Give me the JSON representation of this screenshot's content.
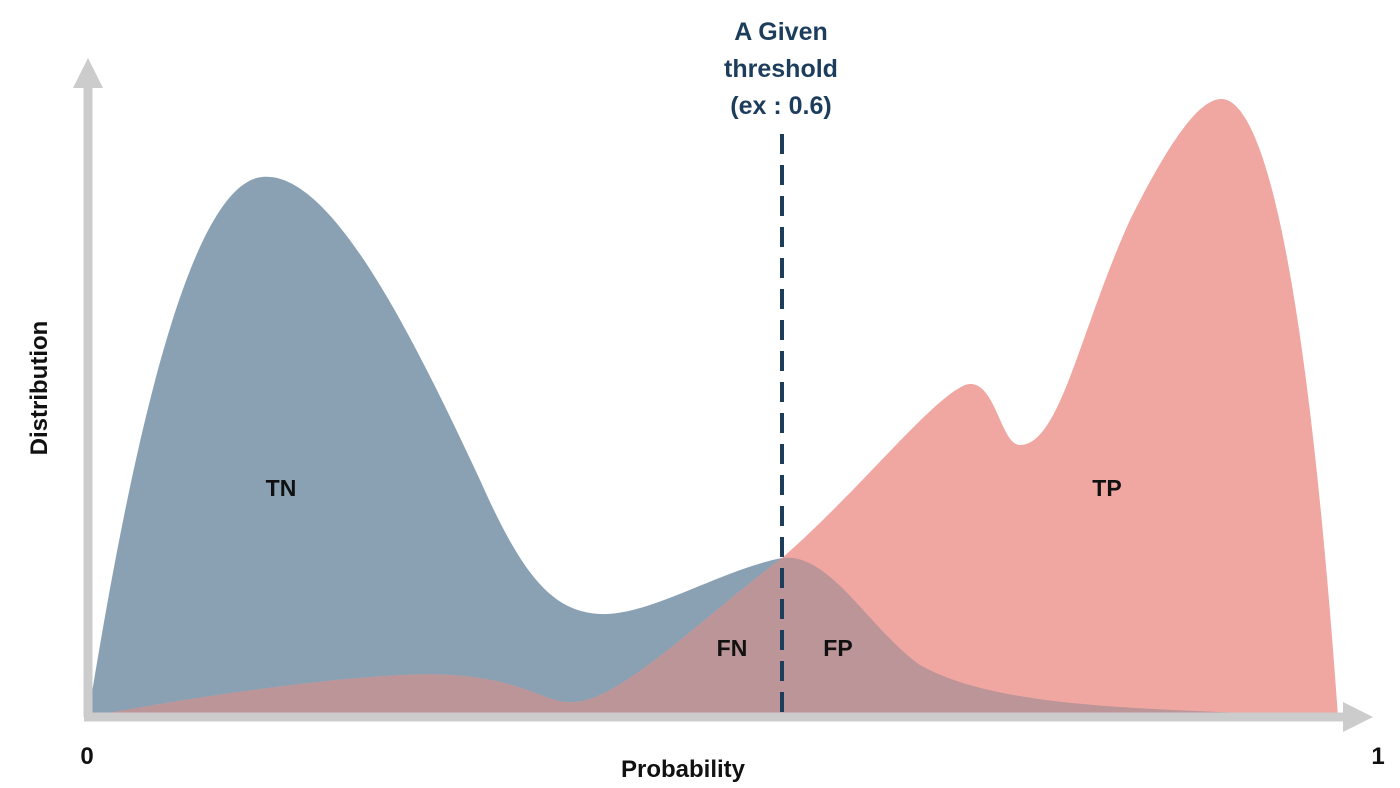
{
  "colors": {
    "negative_fill": "#8aa1b4",
    "positive_fill": "#f0a6a1",
    "overlap_fill": "#bb9598",
    "axis": "#cccccc",
    "threshold": "#1d3d5c",
    "text": "#111111"
  },
  "threshold": {
    "lines": [
      "A Given",
      "threshold",
      "(ex : 0.6)"
    ]
  },
  "axes": {
    "x_label": "Probability",
    "y_label": "Distribution",
    "x_min_label": "0",
    "x_max_label": "1"
  },
  "regions": {
    "tn": "TN",
    "fn": "FN",
    "fp": "FP",
    "tp": "TP"
  }
}
